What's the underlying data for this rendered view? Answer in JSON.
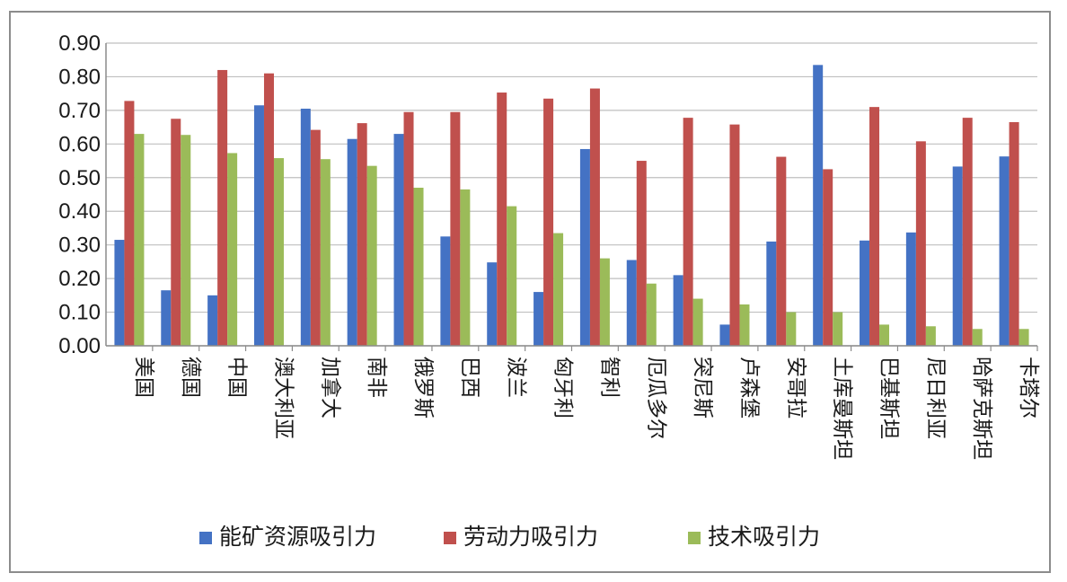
{
  "chart_data": {
    "type": "bar",
    "title": "",
    "xlabel": "",
    "ylabel": "",
    "ylim": [
      0,
      0.9
    ],
    "yticks": [
      "0.00",
      "0.10",
      "0.20",
      "0.30",
      "0.40",
      "0.50",
      "0.60",
      "0.70",
      "0.80",
      "0.90"
    ],
    "grid": "horizontal",
    "legend_position": "bottom",
    "categories": [
      "美国",
      "德国",
      "中国",
      "澳大利亚",
      "加拿大",
      "南非",
      "俄罗斯",
      "巴西",
      "波兰",
      "匈牙利",
      "智利",
      "厄瓜多尔",
      "突尼斯",
      "卢森堡",
      "安哥拉",
      "土库曼斯坦",
      "巴基斯坦",
      "尼日利亚",
      "哈萨克斯坦",
      "卡塔尔"
    ],
    "series": [
      {
        "name": "能矿资源吸引力",
        "color": "#4472c4",
        "values": [
          0.315,
          0.165,
          0.15,
          0.715,
          0.705,
          0.615,
          0.63,
          0.325,
          0.248,
          0.16,
          0.585,
          0.255,
          0.21,
          0.063,
          0.31,
          0.835,
          0.313,
          0.337,
          0.533,
          0.563
        ]
      },
      {
        "name": "劳动力吸引力",
        "color": "#c0504d",
        "values": [
          0.728,
          0.675,
          0.82,
          0.81,
          0.642,
          0.662,
          0.695,
          0.695,
          0.753,
          0.735,
          0.765,
          0.55,
          0.678,
          0.658,
          0.562,
          0.525,
          0.71,
          0.608,
          0.678,
          0.665
        ]
      },
      {
        "name": "技术吸引力",
        "color": "#9bbb59",
        "values": [
          0.63,
          0.627,
          0.573,
          0.558,
          0.555,
          0.535,
          0.47,
          0.465,
          0.415,
          0.335,
          0.26,
          0.185,
          0.14,
          0.123,
          0.1,
          0.1,
          0.063,
          0.058,
          0.05,
          0.05
        ]
      }
    ]
  }
}
